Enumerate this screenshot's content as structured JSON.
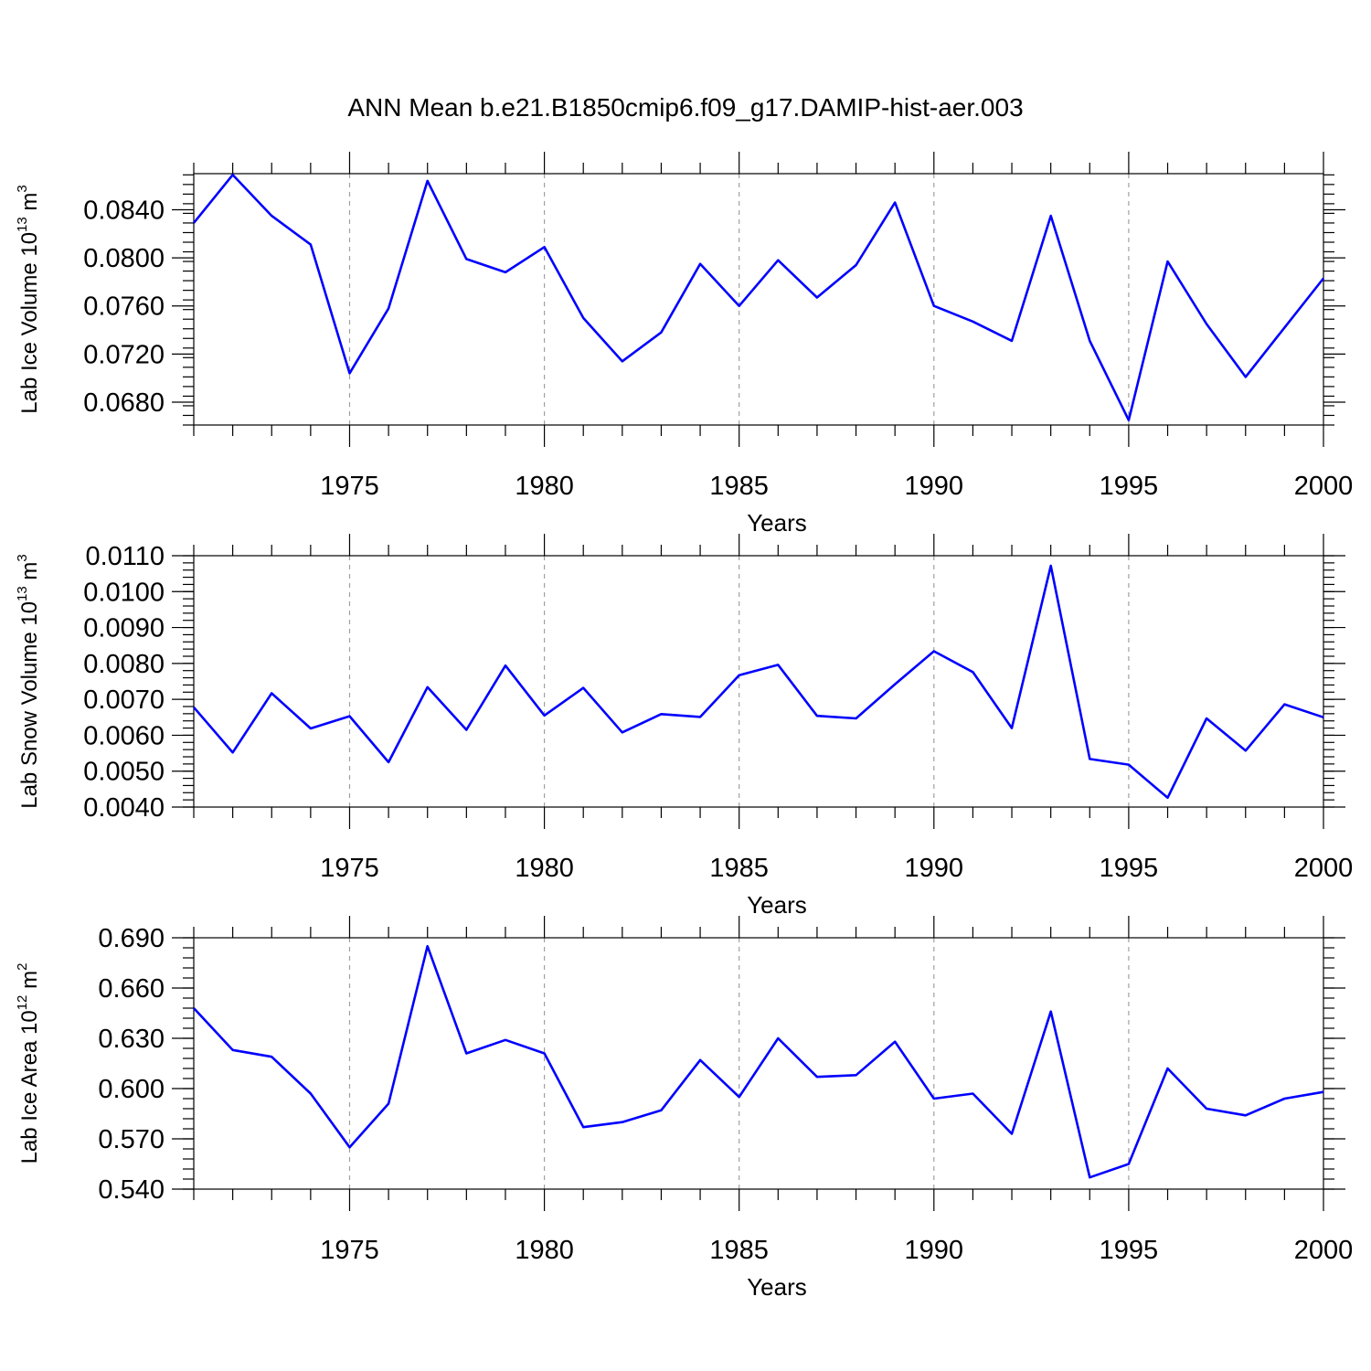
{
  "title": "ANN Mean b.e21.B1850cmip6.f09_g17.DAMIP-hist-aer.003",
  "colors": {
    "line": "#0000ff",
    "axes": "#000000",
    "grid": "#a0a0a0",
    "background": "#ffffff"
  },
  "chart_data": [
    {
      "type": "line",
      "ylabel": {
        "text": "Lab Ice Volume 10",
        "exp": "13",
        "unit": " m",
        "unit_exp": "3"
      },
      "xlabel": "Years",
      "xlim": [
        1971,
        2000
      ],
      "ylim": [
        0.0661,
        0.087
      ],
      "x_ticks": [
        1975,
        1980,
        1985,
        1990,
        1995,
        2000
      ],
      "y_ticks": [
        "0.0680",
        "0.0720",
        "0.0760",
        "0.0800",
        "0.0840"
      ],
      "y_tick_values": [
        0.068,
        0.072,
        0.076,
        0.08,
        0.084
      ],
      "y_minor_step": 0.0008,
      "grid_x": true,
      "x": [
        1971,
        1972,
        1973,
        1974,
        1975,
        1976,
        1977,
        1978,
        1979,
        1980,
        1981,
        1982,
        1983,
        1984,
        1985,
        1986,
        1987,
        1988,
        1989,
        1990,
        1991,
        1992,
        1993,
        1994,
        1995,
        1996,
        1997,
        1998,
        1999,
        2000
      ],
      "series": [
        {
          "values": [
            0.0829,
            0.0869,
            0.0835,
            0.0811,
            0.0704,
            0.0758,
            0.0864,
            0.0799,
            0.0788,
            0.0809,
            0.075,
            0.0714,
            0.0738,
            0.0795,
            0.076,
            0.0798,
            0.0767,
            0.0794,
            0.0846,
            0.076,
            0.0747,
            0.0731,
            0.0835,
            0.0731,
            0.0665,
            0.0797,
            0.0745,
            0.0701,
            0.0742,
            0.0783
          ]
        }
      ]
    },
    {
      "type": "line",
      "ylabel": {
        "text": "Lab Snow Volume 10",
        "exp": "13",
        "unit": " m",
        "unit_exp": "3"
      },
      "xlabel": "Years",
      "xlim": [
        1971,
        2000
      ],
      "ylim": [
        0.004,
        0.011
      ],
      "x_ticks": [
        1975,
        1980,
        1985,
        1990,
        1995,
        2000
      ],
      "y_ticks": [
        "0.0040",
        "0.0050",
        "0.0060",
        "0.0070",
        "0.0080",
        "0.0090",
        "0.0100",
        "0.0110"
      ],
      "y_tick_values": [
        0.004,
        0.005,
        0.006,
        0.007,
        0.008,
        0.009,
        0.01,
        0.011
      ],
      "y_minor_step": 0.0002,
      "grid_x": true,
      "x": [
        1971,
        1972,
        1973,
        1974,
        1975,
        1976,
        1977,
        1978,
        1979,
        1980,
        1981,
        1982,
        1983,
        1984,
        1985,
        1986,
        1987,
        1988,
        1989,
        1990,
        1991,
        1992,
        1993,
        1994,
        1995,
        1996,
        1997,
        1998,
        1999,
        2000
      ],
      "series": [
        {
          "values": [
            0.00678,
            0.00552,
            0.00717,
            0.00619,
            0.00653,
            0.00525,
            0.00734,
            0.00615,
            0.00794,
            0.00655,
            0.00732,
            0.00608,
            0.00659,
            0.00651,
            0.00767,
            0.00796,
            0.00654,
            0.00647,
            0.00742,
            0.00834,
            0.00776,
            0.0062,
            0.01072,
            0.00534,
            0.00518,
            0.00426,
            0.00647,
            0.00557,
            0.00686,
            0.0065
          ]
        }
      ]
    },
    {
      "type": "line",
      "ylabel": {
        "text": "Lab Ice Area 10",
        "exp": "12",
        "unit": " m",
        "unit_exp": "2"
      },
      "xlabel": "Years",
      "xlim": [
        1971,
        2000
      ],
      "ylim": [
        0.54,
        0.69
      ],
      "x_ticks": [
        1975,
        1980,
        1985,
        1990,
        1995,
        2000
      ],
      "y_ticks": [
        "0.540",
        "0.570",
        "0.600",
        "0.630",
        "0.660",
        "0.690"
      ],
      "y_tick_values": [
        0.54,
        0.57,
        0.6,
        0.63,
        0.66,
        0.69
      ],
      "y_minor_step": 0.006,
      "grid_x": true,
      "x": [
        1971,
        1972,
        1973,
        1974,
        1975,
        1976,
        1977,
        1978,
        1979,
        1980,
        1981,
        1982,
        1983,
        1984,
        1985,
        1986,
        1987,
        1988,
        1989,
        1990,
        1991,
        1992,
        1993,
        1994,
        1995,
        1996,
        1997,
        1998,
        1999,
        2000
      ],
      "series": [
        {
          "values": [
            0.648,
            0.623,
            0.619,
            0.597,
            0.565,
            0.591,
            0.685,
            0.621,
            0.629,
            0.621,
            0.577,
            0.58,
            0.587,
            0.617,
            0.595,
            0.63,
            0.607,
            0.608,
            0.628,
            0.594,
            0.597,
            0.573,
            0.646,
            0.547,
            0.555,
            0.612,
            0.588,
            0.584,
            0.594,
            0.598
          ]
        }
      ]
    }
  ]
}
